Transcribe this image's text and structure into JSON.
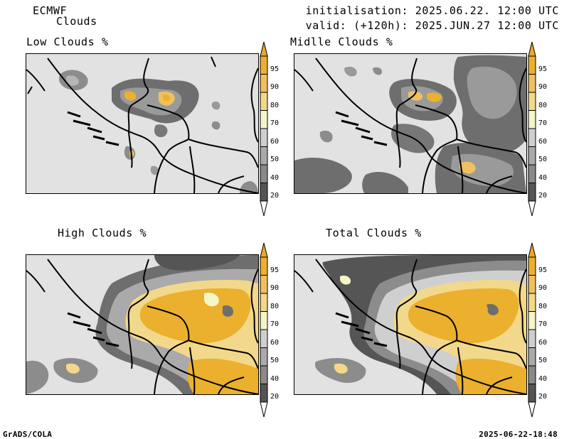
{
  "header": {
    "model": "ECMWF",
    "product": "Clouds",
    "init_line": "initialisation: 2025.06.22. 12:00 UTC",
    "valid_line": "valid: (+120h): 2025.JUN.27 12:00 UTC"
  },
  "panels": [
    {
      "title": "Low Clouds %",
      "coverage": "low"
    },
    {
      "title": "Midlle Clouds %",
      "coverage": "low-mid"
    },
    {
      "title": "High Clouds %",
      "coverage": "high"
    },
    {
      "title": "Total Clouds %",
      "coverage": "high"
    }
  ],
  "colorbar": {
    "levels": [
      "20",
      "40",
      "50",
      "60",
      "70",
      "80",
      "90",
      "95"
    ],
    "colors": [
      "#ffffff",
      "#555555",
      "#8a8a8a",
      "#aaaaaa",
      "#cfcfcf",
      "#f5f5c8",
      "#f2d88a",
      "#efc060",
      "#ebb02e",
      "#e9a92a"
    ]
  },
  "footer": {
    "left": "GrADS/COLA",
    "right": "2025-06-22-18:48"
  }
}
